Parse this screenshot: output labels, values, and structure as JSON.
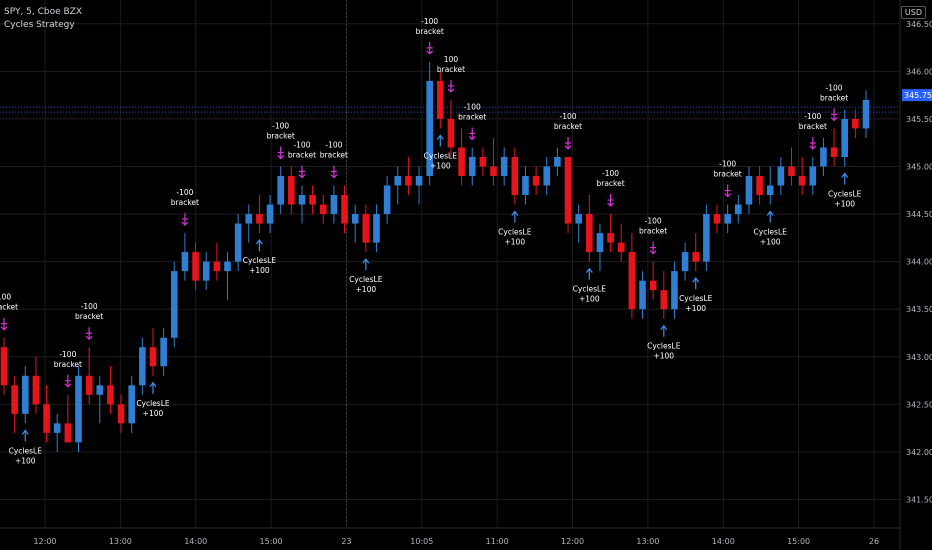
{
  "header": {
    "symbol": "SPY, 5, Cboe BZX",
    "indicator": "Cycles Strategy"
  },
  "currency": "USD",
  "chart_data": {
    "type": "candlestick",
    "title": "SPY, 5, Cboe BZX",
    "subtitle": "Cycles Strategy",
    "ylim": [
      341.2,
      346.75
    ],
    "y_ticks": [
      "346.50",
      "346.00",
      "345.50",
      "345.00",
      "344.50",
      "344.00",
      "343.50",
      "343.00",
      "342.50",
      "342.00",
      "341.50"
    ],
    "x_ticks": [
      "12:00",
      "13:00",
      "14:00",
      "15:00",
      "23",
      "10:05",
      "11:00",
      "12:00",
      "13:00",
      "14:00",
      "15:00",
      "26"
    ],
    "last_price": "345.75",
    "last_price_value": 345.75,
    "colors": {
      "up": "#2f7fd4",
      "down": "#e8141c",
      "marker": "#d633d6",
      "entry": "#3d8ff0",
      "grid": "#1c1c1c",
      "price_line": "#2962ff"
    },
    "candles": [
      [
        343.1,
        343.2,
        342.6,
        342.7
      ],
      [
        342.7,
        342.8,
        342.2,
        342.4
      ],
      [
        342.4,
        342.9,
        342.3,
        342.8
      ],
      [
        342.8,
        343.0,
        342.4,
        342.5
      ],
      [
        342.5,
        342.7,
        342.1,
        342.2
      ],
      [
        342.2,
        342.4,
        342.0,
        342.3
      ],
      [
        342.3,
        342.6,
        342.1,
        342.1
      ],
      [
        342.1,
        342.9,
        342.0,
        342.8
      ],
      [
        342.8,
        343.1,
        342.5,
        342.6
      ],
      [
        342.6,
        342.8,
        342.3,
        342.7
      ],
      [
        342.7,
        342.9,
        342.4,
        342.5
      ],
      [
        342.5,
        342.6,
        342.2,
        342.3
      ],
      [
        342.3,
        342.8,
        342.2,
        342.7
      ],
      [
        342.7,
        343.2,
        342.6,
        343.1
      ],
      [
        343.1,
        343.3,
        342.8,
        342.9
      ],
      [
        342.9,
        343.3,
        342.8,
        343.2
      ],
      [
        343.2,
        344.0,
        343.1,
        343.9
      ],
      [
        343.9,
        344.3,
        343.8,
        344.1
      ],
      [
        344.1,
        344.2,
        343.7,
        343.8
      ],
      [
        343.8,
        344.1,
        343.7,
        344.0
      ],
      [
        344.0,
        344.2,
        343.8,
        343.9
      ],
      [
        343.9,
        344.1,
        343.6,
        344.0
      ],
      [
        344.0,
        344.5,
        343.9,
        344.4
      ],
      [
        344.4,
        344.6,
        344.2,
        344.5
      ],
      [
        344.5,
        344.7,
        344.3,
        344.4
      ],
      [
        344.4,
        344.7,
        344.3,
        344.6
      ],
      [
        344.6,
        345.0,
        344.5,
        344.9
      ],
      [
        344.9,
        345.0,
        344.5,
        344.6
      ],
      [
        344.6,
        344.8,
        344.4,
        344.7
      ],
      [
        344.7,
        344.8,
        344.5,
        344.6
      ],
      [
        344.6,
        344.7,
        344.4,
        344.5
      ],
      [
        344.5,
        344.8,
        344.4,
        344.7
      ],
      [
        344.7,
        344.8,
        344.3,
        344.4
      ],
      [
        344.4,
        344.6,
        344.2,
        344.5
      ],
      [
        344.5,
        344.6,
        344.1,
        344.2
      ],
      [
        344.2,
        344.6,
        344.1,
        344.5
      ],
      [
        344.5,
        344.9,
        344.4,
        344.8
      ],
      [
        344.8,
        345.0,
        344.6,
        344.9
      ],
      [
        344.9,
        345.1,
        344.7,
        344.8
      ],
      [
        344.8,
        345.0,
        344.6,
        344.9
      ],
      [
        344.9,
        346.1,
        344.8,
        345.9
      ],
      [
        345.9,
        346.0,
        345.4,
        345.5
      ],
      [
        345.5,
        345.7,
        345.1,
        345.2
      ],
      [
        345.2,
        345.4,
        344.8,
        344.9
      ],
      [
        344.9,
        345.2,
        344.8,
        345.1
      ],
      [
        345.1,
        345.2,
        344.9,
        345.0
      ],
      [
        345.0,
        345.3,
        344.8,
        344.9
      ],
      [
        344.9,
        345.2,
        344.8,
        345.1
      ],
      [
        345.1,
        345.2,
        344.6,
        344.7
      ],
      [
        344.7,
        345.0,
        344.6,
        344.9
      ],
      [
        344.9,
        345.0,
        344.7,
        344.8
      ],
      [
        344.8,
        345.1,
        344.7,
        345.0
      ],
      [
        345.0,
        345.2,
        344.9,
        345.1
      ],
      [
        345.1,
        345.1,
        344.3,
        344.4
      ],
      [
        344.4,
        344.6,
        344.2,
        344.5
      ],
      [
        344.5,
        344.7,
        344.0,
        344.1
      ],
      [
        344.1,
        344.4,
        343.9,
        344.3
      ],
      [
        344.3,
        344.5,
        344.1,
        344.2
      ],
      [
        344.2,
        344.4,
        344.0,
        344.1
      ],
      [
        344.1,
        344.3,
        343.4,
        343.5
      ],
      [
        343.5,
        343.9,
        343.4,
        343.8
      ],
      [
        343.8,
        344.0,
        343.6,
        343.7
      ],
      [
        343.7,
        343.9,
        343.4,
        343.5
      ],
      [
        343.5,
        344.0,
        343.4,
        343.9
      ],
      [
        343.9,
        344.2,
        343.8,
        344.1
      ],
      [
        344.1,
        344.3,
        343.9,
        344.0
      ],
      [
        344.0,
        344.6,
        343.9,
        344.5
      ],
      [
        344.5,
        344.6,
        344.3,
        344.4
      ],
      [
        344.4,
        344.6,
        344.3,
        344.5
      ],
      [
        344.5,
        344.7,
        344.4,
        344.6
      ],
      [
        344.6,
        345.0,
        344.5,
        344.9
      ],
      [
        344.9,
        345.0,
        344.6,
        344.7
      ],
      [
        344.7,
        345.0,
        344.6,
        344.8
      ],
      [
        344.8,
        345.1,
        344.7,
        345.0
      ],
      [
        345.0,
        345.2,
        344.8,
        344.9
      ],
      [
        344.9,
        345.1,
        344.7,
        344.8
      ],
      [
        344.8,
        345.1,
        344.7,
        345.0
      ],
      [
        345.0,
        345.3,
        344.9,
        345.2
      ],
      [
        345.2,
        345.4,
        345.0,
        345.1
      ],
      [
        345.1,
        345.6,
        345.0,
        345.5
      ],
      [
        345.5,
        345.6,
        345.3,
        345.4
      ],
      [
        345.4,
        345.8,
        345.3,
        345.7
      ]
    ],
    "sell_signals": [
      {
        "i": 0,
        "lines": [
          "100",
          "bracket"
        ]
      },
      {
        "i": 6,
        "lines": [
          "-100",
          "bracket"
        ]
      },
      {
        "i": 8,
        "lines": [
          "-100",
          "bracket"
        ]
      },
      {
        "i": 17,
        "lines": [
          "-100",
          "bracket"
        ]
      },
      {
        "i": 26,
        "lines": [
          "-100",
          "bracket"
        ]
      },
      {
        "i": 28,
        "lines": [
          "-100",
          "bracket"
        ]
      },
      {
        "i": 31,
        "lines": [
          "-100",
          "bracket"
        ]
      },
      {
        "i": 40,
        "lines": [
          "-100",
          "bracket"
        ]
      },
      {
        "i": 42,
        "lines": [
          "100",
          "bracket"
        ]
      },
      {
        "i": 44,
        "lines": [
          "-100",
          "bracket"
        ]
      },
      {
        "i": 53,
        "lines": [
          "-100",
          "bracket"
        ]
      },
      {
        "i": 57,
        "lines": [
          "-100",
          "bracket"
        ]
      },
      {
        "i": 61,
        "lines": [
          "-100",
          "bracket"
        ]
      },
      {
        "i": 68,
        "lines": [
          "-100",
          "bracket"
        ]
      },
      {
        "i": 76,
        "lines": [
          "-100",
          "bracket"
        ]
      },
      {
        "i": 78,
        "lines": [
          "-100",
          "bracket"
        ]
      }
    ],
    "buy_signals": [
      {
        "i": 2,
        "lines": [
          "CyclesLE",
          "+100"
        ]
      },
      {
        "i": 14,
        "lines": [
          "CyclesLE",
          "+100"
        ]
      },
      {
        "i": 24,
        "lines": [
          "CyclesLE",
          "+100"
        ]
      },
      {
        "i": 34,
        "lines": [
          "CyclesLE",
          "+100"
        ]
      },
      {
        "i": 41,
        "lines": [
          "CyclesLE",
          "+100"
        ]
      },
      {
        "i": 48,
        "lines": [
          "CyclesLE",
          "+100"
        ]
      },
      {
        "i": 55,
        "lines": [
          "CyclesLE",
          "+100"
        ]
      },
      {
        "i": 62,
        "lines": [
          "CyclesLE",
          "+100"
        ]
      },
      {
        "i": 65,
        "lines": [
          "CyclesLE",
          "+100"
        ]
      },
      {
        "i": 72,
        "lines": [
          "CyclesLE",
          "+100"
        ]
      },
      {
        "i": 79,
        "lines": [
          "CyclesLE",
          "+100"
        ]
      }
    ]
  }
}
